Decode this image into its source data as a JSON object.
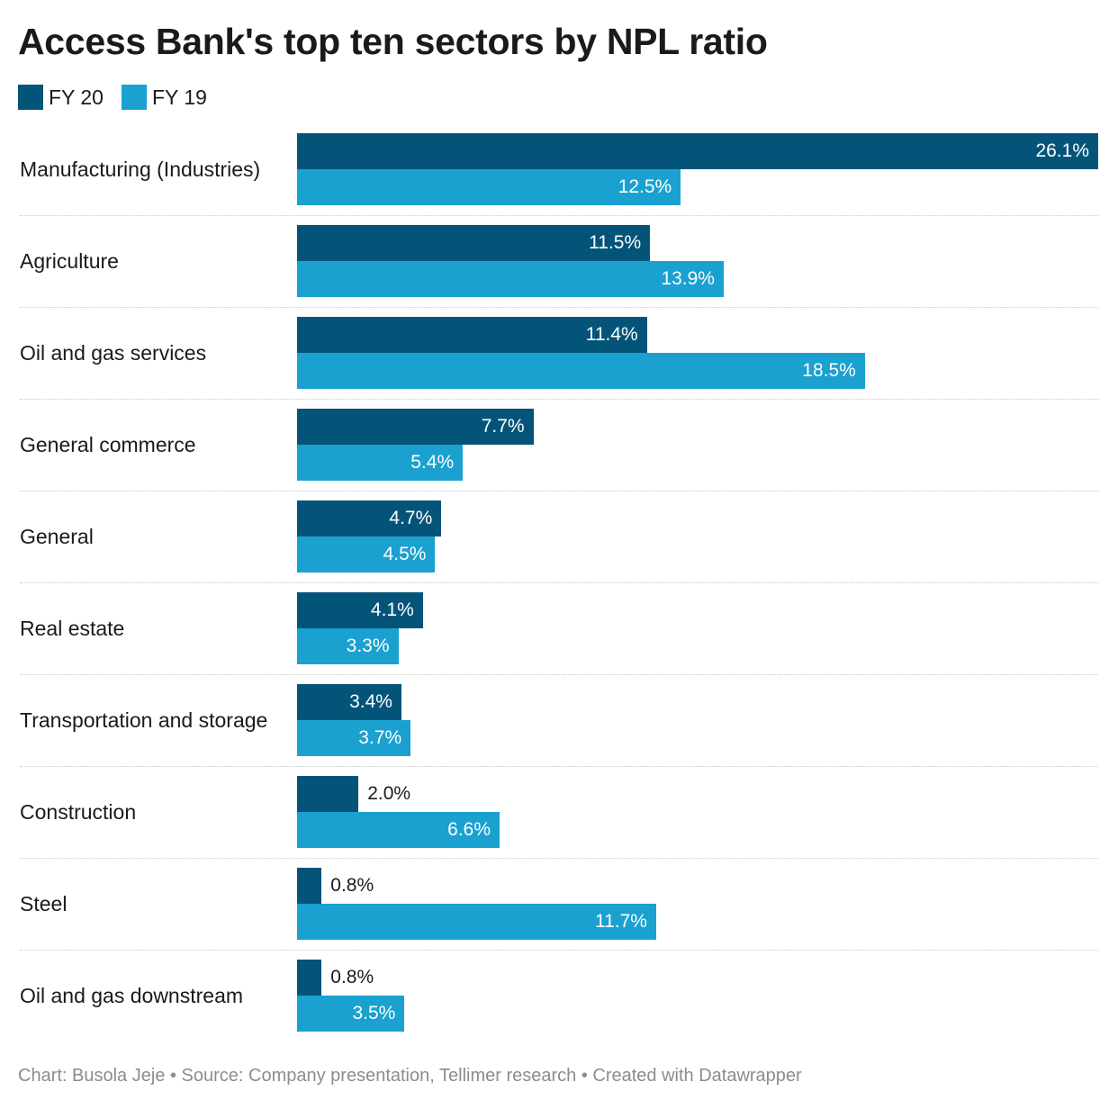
{
  "title": "Access Bank's top ten sectors by NPL ratio",
  "footer": "Chart: Busola Jeje • Source: Company presentation, Tellimer research • Created with Datawrapper",
  "colors": {
    "fy20": "#04547a",
    "fy19": "#1aa1d0"
  },
  "legend": [
    {
      "label": "FY 20",
      "color": "#04547a"
    },
    {
      "label": "FY 19",
      "color": "#1aa1d0"
    }
  ],
  "chart_data": {
    "type": "bar",
    "orientation": "horizontal",
    "title": "Access Bank's top ten sectors by NPL ratio",
    "categories": [
      "Manufacturing (Industries)",
      "Agriculture",
      "Oil and gas services",
      "General commerce",
      "General",
      "Real estate",
      "Transportation and storage",
      "Construction",
      "Steel",
      "Oil and gas downstream"
    ],
    "series": [
      {
        "name": "FY 20",
        "color": "#04547a",
        "values": [
          26.1,
          11.5,
          11.4,
          7.7,
          4.7,
          4.1,
          3.4,
          2.0,
          0.8,
          0.8
        ]
      },
      {
        "name": "FY 19",
        "color": "#1aa1d0",
        "values": [
          12.5,
          13.9,
          18.5,
          5.4,
          4.5,
          3.3,
          3.7,
          6.6,
          11.7,
          3.5
        ]
      }
    ],
    "value_unit": "%",
    "xlim": [
      0,
      26.1
    ],
    "legend_position": "top-left",
    "grid": false
  }
}
